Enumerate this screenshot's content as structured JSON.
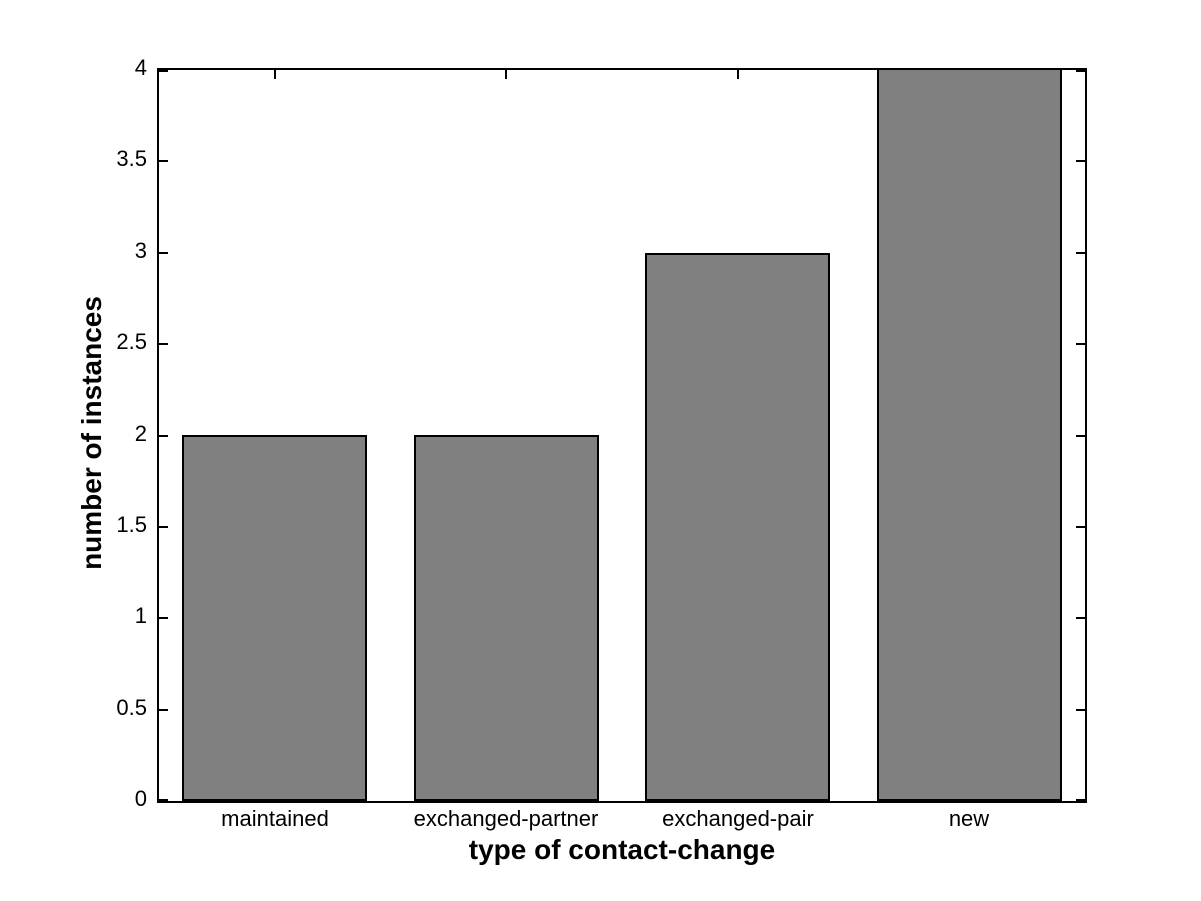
{
  "figure": {
    "background_color": "#ffffff"
  },
  "chart_data": {
    "type": "bar",
    "title": "",
    "xlabel": "type of contact-change",
    "ylabel": "number of instances",
    "categories": [
      "maintained",
      "exchanged-partner",
      "exchanged-pair",
      "new"
    ],
    "values": [
      2,
      2,
      3,
      4
    ],
    "ylim": [
      0,
      4
    ],
    "yticks": [
      0,
      0.5,
      1,
      1.5,
      2,
      2.5,
      3,
      3.5,
      4
    ],
    "ytick_labels": [
      "0",
      "0.5",
      "1",
      "1.5",
      "2",
      "2.5",
      "3",
      "3.5",
      "4"
    ],
    "bar_width_fraction": 0.8,
    "bar_color": "#808080",
    "bar_edge_color": "#000000",
    "axis_color": "#000000",
    "grid": false,
    "legend": "none",
    "tick_direction": "in",
    "box": true
  }
}
